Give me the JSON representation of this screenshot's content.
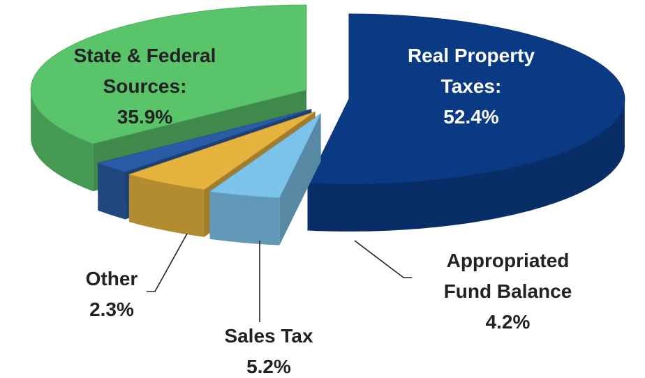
{
  "chart_data": {
    "type": "pie3d",
    "categories": [
      "Real Property Taxes:",
      "Appropriated Fund Balance",
      "Sales Tax",
      "Other",
      "State & Federal Sources:"
    ],
    "values": [
      52.4,
      4.2,
      5.2,
      2.3,
      35.9
    ],
    "value_labels": [
      "52.4%",
      "4.2%",
      "5.2%",
      "2.3%",
      "35.9%"
    ],
    "colors": [
      "#0b3a84",
      "#7cc3ec",
      "#e6b33e",
      "#2a5ba6",
      "#5ac46a"
    ]
  }
}
